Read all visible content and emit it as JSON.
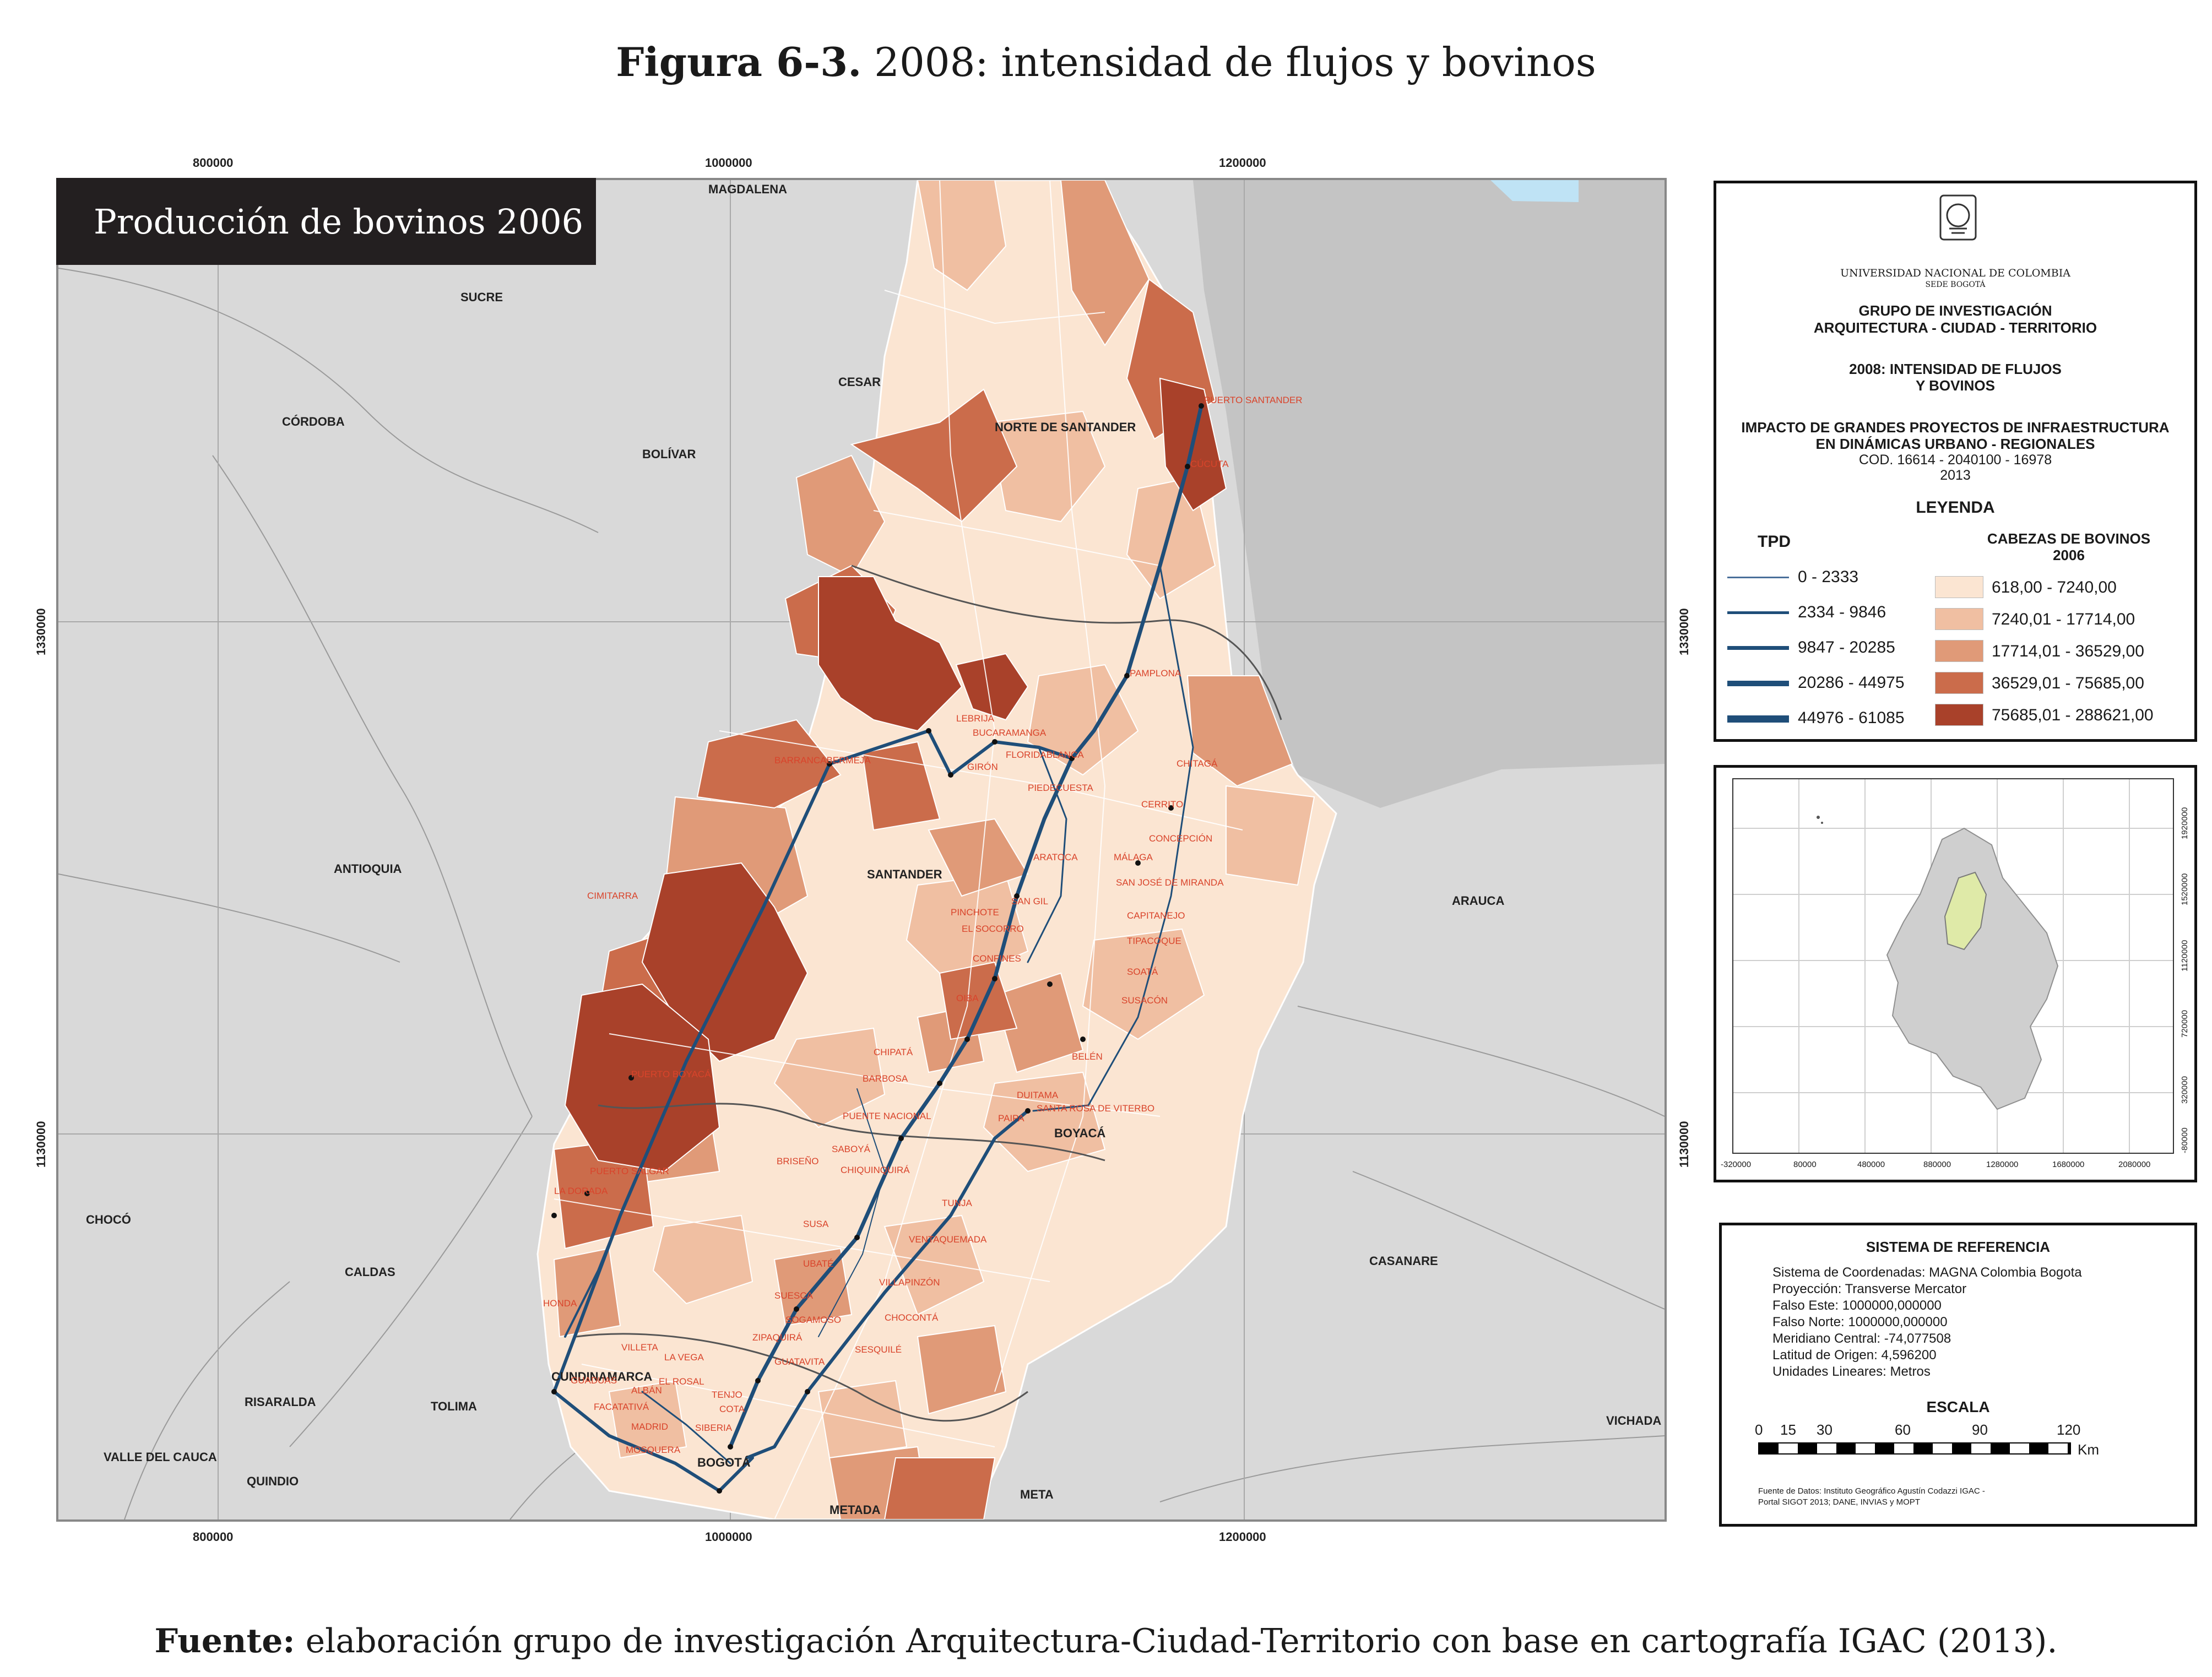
{
  "figure": {
    "number": "Figura 6-3.",
    "title": "2008: intensidad de flujos y bovinos"
  },
  "map": {
    "badge": "Producción de bovinos 2006",
    "x_ticks": [
      "800000",
      "1000000",
      "1200000"
    ],
    "y_ticks": [
      "1330000",
      "1130000"
    ],
    "departments": [
      "MAGDALENA",
      "SUCRE",
      "CÓRDOBA",
      "BOLÍVAR",
      "CESAR",
      "NORTE DE SANTANDER",
      "ANTIOQUIA",
      "SANTANDER",
      "ARAUCA",
      "BOYACÁ",
      "CHOCÓ",
      "CALDAS",
      "CASANARE",
      "CUNDINAMARCA",
      "RISARALDA",
      "TOLIMA",
      "VALLE DEL CAUCA",
      "QUINDIO",
      "BOGOTÁ",
      "META",
      "METADA",
      "VICHADA"
    ],
    "towns": [
      "PUERTO SANTANDER",
      "CÚCUTA",
      "PAMPLONA",
      "LEBRIJA",
      "BUCARAMANGA",
      "BARRANCABERMEJA",
      "GIRÓN",
      "FLORIDABLANCA",
      "PIEDECUESTA",
      "CHITAGÁ",
      "CERRITO",
      "CONCEPCIÓN",
      "ARATOCA",
      "MÁLAGA",
      "SAN JOSÉ DE MIRANDA",
      "CIMITARRA",
      "SAN GIL",
      "PINCHOTE",
      "CAPITANEJO",
      "EL SOCORRO",
      "TIPACOQUE",
      "CONFINES",
      "SOATÁ",
      "OIBA",
      "SUSACÓN",
      "BELÉN",
      "CHIPATÁ",
      "BARBOSA",
      "DUITAMA",
      "SANTA ROSA DE VITERBO",
      "PUENTE NACIONAL",
      "PAIPA",
      "PUERTO BOYACÁ",
      "SABOYÁ",
      "PUERTO SALGAR",
      "CHIQUINQUIRÁ",
      "BRISEÑO",
      "LA DORADA",
      "TUNJA",
      "SUSA",
      "VENTAQUEMADA",
      "UBATÉ",
      "HONDA",
      "VILLAPINZÓN",
      "SUESCA",
      "CHOCONTÁ",
      "SOGAMOSO",
      "ZIPAQUIRÁ",
      "SESQUILÉ",
      "VILLETA",
      "LA VEGA",
      "GUATAVITA",
      "EL ROSAL",
      "TENJO",
      "FACATATIVÁ",
      "MADRID",
      "MOSQUERA",
      "SIBERIA",
      "ALBÁN",
      "COTA",
      "GUADUAS"
    ],
    "route_color": "#1f4e79",
    "fill_colors": [
      "#fbe5d2",
      "#f0bfa2",
      "#e09a78",
      "#cb6c4b",
      "#a9412a"
    ]
  },
  "legend": {
    "university": "UNIVERSIDAD NACIONAL DE COLOMBIA",
    "campus": "SEDE BOGOTÁ",
    "group": [
      "GRUPO DE INVESTIGACIÓN",
      "ARQUITECTURA - CIUDAD - TERRITORIO"
    ],
    "map_title": [
      "2008: INTENSIDAD DE FLUJOS",
      "Y BOVINOS"
    ],
    "project": [
      "IMPACTO DE GRANDES PROYECTOS DE INFRAESTRUCTURA",
      "EN DINÁMICAS URBANO - REGIONALES"
    ],
    "code": "COD. 16614 - 2040100 - 16978",
    "year": "2013",
    "heading": "LEYENDA",
    "tpd_heading": "TPD",
    "tpd": [
      {
        "label": "0 - 2333",
        "weight": 1
      },
      {
        "label": "2334 - 9846",
        "weight": 2
      },
      {
        "label": "9847 - 20285",
        "weight": 3
      },
      {
        "label": "20286 - 44975",
        "weight": 4
      },
      {
        "label": "44976 - 61085",
        "weight": 5
      }
    ],
    "cattle_heading": [
      "CABEZAS DE BOVINOS",
      "2006"
    ],
    "cattle": [
      {
        "label": "618,00 - 7240,00",
        "color": "#fbe5d2"
      },
      {
        "label": "7240,01 - 17714,00",
        "color": "#f0bfa2"
      },
      {
        "label": "17714,01 - 36529,00",
        "color": "#e09a78"
      },
      {
        "label": "36529,01 - 75685,00",
        "color": "#cb6c4b"
      },
      {
        "label": "75685,01 - 288621,00",
        "color": "#a9412a"
      }
    ]
  },
  "inset": {
    "x_ticks": [
      "-320000",
      "80000",
      "480000",
      "880000",
      "1280000",
      "1680000",
      "2080000"
    ],
    "y_ticks": [
      "1920000",
      "1520000",
      "1120000",
      "720000",
      "320000",
      "-80000"
    ],
    "highlight_color": "#dfeaa8"
  },
  "reference": {
    "heading": "SISTEMA DE REFERENCIA",
    "lines": [
      "Sistema de Coordenadas: MAGNA Colombia Bogota",
      "Proyección: Transverse Mercator",
      "Falso Este: 1000000,000000",
      "Falso Norte: 1000000,000000",
      "Meridiano Central: -74,077508",
      "Latitud de Origen: 4,596200",
      "Unidades Lineares: Metros"
    ],
    "scale_heading": "ESCALA",
    "scale_ticks": [
      "0",
      "15",
      "30",
      "60",
      "90",
      "120"
    ],
    "scale_unit": "Km",
    "sources": [
      "Fuente de Datos: Instituto Geográfico Agustín Codazzi IGAC -",
      "Portal SIGOT 2013; DANE, INVIAS y MOPT"
    ]
  },
  "source": {
    "label": "Fuente:",
    "text": "elaboración grupo de investigación Arquitectura-Ciudad-Territorio con base en cartografía IGAC (2013)."
  }
}
